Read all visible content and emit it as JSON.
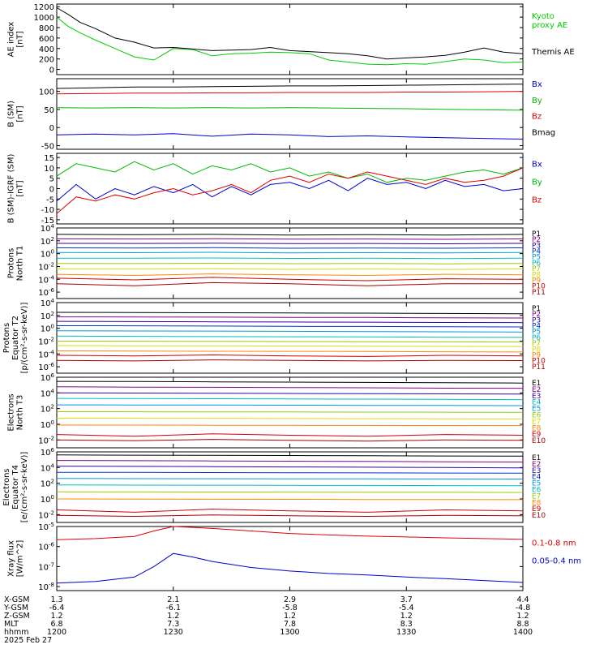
{
  "figure": {
    "x_tick_labels": [
      "1200",
      "1230",
      "1300",
      "1330",
      "1400"
    ],
    "date_label": "2025 Feb 27",
    "orbit_rows": [
      {
        "label": "X-GSM",
        "values": [
          "1.3",
          "2.1",
          "2.9",
          "3.7",
          "4.4"
        ]
      },
      {
        "label": "Y-GSM",
        "values": [
          "-6.4",
          "-6.1",
          "-5.8",
          "-5.4",
          "-4.8"
        ]
      },
      {
        "label": "Z-GSM",
        "values": [
          "1.2",
          "1.2",
          "1.2",
          "1.2",
          "1.2"
        ]
      },
      {
        "label": "MLT",
        "values": [
          "6.8",
          "7.3",
          "7.8",
          "8.3",
          "8.8"
        ]
      },
      {
        "label": "hhmm",
        "values": [
          "1200",
          "1230",
          "1300",
          "1330",
          "1400"
        ]
      }
    ]
  },
  "chart_data": [
    {
      "type": "line",
      "ylabel": [
        "AE index",
        "[nT]"
      ],
      "yticks": [
        "1200",
        "1000",
        "800",
        "600",
        "400",
        "200",
        "0"
      ],
      "ylim": [
        -100,
        1250
      ],
      "x": [
        1200,
        1203,
        1206,
        1210,
        1215,
        1220,
        1225,
        1230,
        1235,
        1240,
        1245,
        1250,
        1255,
        1300,
        1305,
        1310,
        1315,
        1320,
        1325,
        1330,
        1335,
        1340,
        1345,
        1350,
        1355,
        1400
      ],
      "series": [
        {
          "name": "Kyoto proxy AE",
          "color": "#00cc00",
          "label_lines": [
            "Kyoto",
            "proxy AE"
          ],
          "values": [
            1000,
            820,
            700,
            560,
            400,
            240,
            180,
            400,
            380,
            260,
            300,
            310,
            330,
            320,
            300,
            180,
            140,
            100,
            90,
            110,
            100,
            150,
            200,
            180,
            130,
            140
          ]
        },
        {
          "name": "Themis AE",
          "color": "#000000",
          "label_lines": [
            "Themis AE"
          ],
          "values": [
            1180,
            1050,
            900,
            780,
            600,
            520,
            410,
            420,
            390,
            360,
            370,
            380,
            420,
            360,
            340,
            320,
            300,
            260,
            200,
            220,
            240,
            270,
            330,
            410,
            330,
            300
          ]
        }
      ]
    },
    {
      "type": "line",
      "ylabel": [
        "B (SM)",
        "[nT]"
      ],
      "yticks": [
        "100",
        "50",
        "0",
        "-50"
      ],
      "ylim": [
        -60,
        135
      ],
      "x": [
        1200,
        1210,
        1220,
        1230,
        1240,
        1250,
        1300,
        1310,
        1320,
        1330,
        1340,
        1350,
        1400
      ],
      "series": [
        {
          "name": "Bx",
          "color": "#0000cc",
          "values": [
            -20,
            -18,
            -20,
            -17,
            -24,
            -18,
            -20,
            -25,
            -23,
            -26,
            -28,
            -30,
            -32
          ]
        },
        {
          "name": "By",
          "color": "#00bb00",
          "values": [
            55,
            54,
            55,
            54,
            55,
            54,
            55,
            54,
            53,
            52,
            50,
            49,
            48
          ]
        },
        {
          "name": "Bz",
          "color": "#dd0000",
          "values": [
            93,
            94,
            95,
            95,
            96,
            96,
            97,
            97,
            97,
            98,
            98,
            99,
            100
          ]
        },
        {
          "name": "Bmag",
          "color": "#000000",
          "values": [
            108,
            110,
            112,
            112,
            113,
            114,
            115,
            115,
            116,
            117,
            118,
            119,
            120
          ]
        }
      ]
    },
    {
      "type": "line",
      "ylabel": [
        "B (SM)-IGRF (SM)",
        "[nT]"
      ],
      "yticks": [
        "15",
        "10",
        "5",
        "0",
        "-5",
        "-10",
        "-15"
      ],
      "ylim": [
        -17,
        17
      ],
      "x": [
        1200,
        1205,
        1210,
        1215,
        1220,
        1225,
        1230,
        1235,
        1240,
        1245,
        1250,
        1255,
        1300,
        1305,
        1310,
        1315,
        1320,
        1325,
        1330,
        1335,
        1340,
        1345,
        1350,
        1355,
        1400
      ],
      "series": [
        {
          "name": "Bx",
          "color": "#0000cc",
          "values": [
            -6,
            2,
            -5,
            0,
            -3,
            1,
            -2,
            2,
            -4,
            1,
            -3,
            2,
            3,
            0,
            4,
            -1,
            5,
            2,
            3,
            0,
            4,
            1,
            2,
            -1,
            0
          ]
        },
        {
          "name": "By",
          "color": "#00bb00",
          "values": [
            6,
            12,
            10,
            8,
            13,
            9,
            12,
            7,
            11,
            9,
            12,
            8,
            10,
            6,
            8,
            5,
            7,
            3,
            5,
            4,
            6,
            8,
            9,
            7,
            10
          ]
        },
        {
          "name": "Bz",
          "color": "#dd0000",
          "values": [
            -12,
            -4,
            -6,
            -3,
            -5,
            -2,
            0,
            -3,
            -1,
            2,
            -2,
            4,
            6,
            3,
            7,
            5,
            8,
            6,
            4,
            2,
            5,
            3,
            4,
            6,
            10
          ]
        }
      ]
    },
    {
      "type": "line",
      "log_scale": true,
      "ylabel": [
        "Protons",
        "North T1"
      ],
      "yticks": [
        "10^4",
        "10^2",
        "10^0",
        "10^-2",
        "10^-4",
        "10^-6"
      ],
      "ylim_log10": [
        -7,
        4
      ],
      "x": [
        1200,
        1220,
        1240,
        1300,
        1320,
        1340,
        1400
      ],
      "series": [
        {
          "name": "P1",
          "color": "#000000",
          "values": [
            1000,
            900,
            1000,
            800,
            900,
            800,
            1000
          ]
        },
        {
          "name": "P2",
          "color": "#880088",
          "values": [
            200,
            190,
            210,
            180,
            190,
            170,
            200
          ]
        },
        {
          "name": "P3",
          "color": "#3300aa",
          "values": [
            40,
            38,
            42,
            36,
            38,
            34,
            40
          ]
        },
        {
          "name": "P4",
          "color": "#0033cc",
          "values": [
            8,
            7.5,
            8.5,
            7,
            7.5,
            7,
            8
          ]
        },
        {
          "name": "P5",
          "color": "#0099dd",
          "values": [
            1.5,
            1.4,
            1.6,
            1.3,
            1.4,
            1.3,
            1.5
          ]
        },
        {
          "name": "P6",
          "color": "#00bbbb",
          "values": [
            0.2,
            0.19,
            0.21,
            0.18,
            0.19,
            0.17,
            0.2
          ]
        },
        {
          "name": "P7",
          "color": "#99cc00",
          "values": [
            0.03,
            0.028,
            0.032,
            0.027,
            0.029,
            0.026,
            0.03
          ]
        },
        {
          "name": "P8",
          "color": "#dddd00",
          "values": [
            0.004,
            0.0038,
            0.0042,
            0.0036,
            0.0039,
            0.0035,
            0.004
          ]
        },
        {
          "name": "P9",
          "color": "#ff8800",
          "values": [
            0.0006,
            0.0004,
            0.0007,
            0.0005,
            0.0004,
            0.0006,
            0.0005
          ]
        },
        {
          "name": "P10",
          "color": "#cc0000",
          "values": [
            0.00015,
            8e-05,
            0.0002,
            0.0001,
            6e-05,
            0.00012,
            0.0001
          ]
        },
        {
          "name": "P11",
          "color": "#aa0000",
          "values": [
            2e-05,
            1e-05,
            3e-05,
            2e-05,
            1e-05,
            2e-05,
            2e-05
          ]
        }
      ]
    },
    {
      "type": "line",
      "log_scale": true,
      "ylabel": [
        "Protons",
        "Equator T2",
        "[p/(cm²-s-sr-keV)]"
      ],
      "yticks": [
        "10^4",
        "10^2",
        "10^0",
        "10^-2",
        "10^-4",
        "10^-6"
      ],
      "ylim_log10": [
        -7,
        4
      ],
      "x": [
        1200,
        1220,
        1240,
        1300,
        1320,
        1340,
        1400
      ],
      "series": [
        {
          "name": "P1",
          "color": "#000000",
          "values": [
            300,
            280,
            260,
            240,
            230,
            200,
            180
          ]
        },
        {
          "name": "P2",
          "color": "#880088",
          "values": [
            60,
            58,
            55,
            50,
            48,
            42,
            40
          ]
        },
        {
          "name": "P3",
          "color": "#3300aa",
          "values": [
            12,
            11,
            10,
            9.5,
            9,
            8,
            7.5
          ]
        },
        {
          "name": "P4",
          "color": "#0033cc",
          "values": [
            2.5,
            2.4,
            2.2,
            2,
            1.9,
            1.7,
            1.6
          ]
        },
        {
          "name": "P5",
          "color": "#0099dd",
          "values": [
            0.4,
            0.38,
            0.36,
            0.33,
            0.31,
            0.28,
            0.26
          ]
        },
        {
          "name": "P6",
          "color": "#00bbbb",
          "values": [
            0.06,
            0.055,
            0.05,
            0.048,
            0.045,
            0.04,
            0.038
          ]
        },
        {
          "name": "P7",
          "color": "#99cc00",
          "values": [
            0.01,
            0.0095,
            0.009,
            0.0085,
            0.008,
            0.0075,
            0.007
          ]
        },
        {
          "name": "P8",
          "color": "#dddd00",
          "values": [
            0.002,
            0.0019,
            0.0018,
            0.0017,
            0.0016,
            0.0015,
            0.0014
          ]
        },
        {
          "name": "P9",
          "color": "#ff8800",
          "values": [
            0.0003,
            0.00028,
            0.00026,
            0.00025,
            0.00024,
            0.00022,
            0.0002
          ]
        },
        {
          "name": "P10",
          "color": "#cc0000",
          "values": [
            6e-05,
            5e-05,
            7e-05,
            5e-05,
            4e-05,
            6e-05,
            5e-05
          ]
        },
        {
          "name": "P11",
          "color": "#aa0000",
          "values": [
            1e-05,
            8e-06,
            1.2e-05,
            1e-05,
            8e-06,
            1e-05,
            9e-06
          ]
        }
      ]
    },
    {
      "type": "line",
      "log_scale": true,
      "ylabel": [
        "Electrons",
        "North T3"
      ],
      "yticks": [
        "10^6",
        "10^4",
        "10^2",
        "10^0",
        "10^-2"
      ],
      "ylim_log10": [
        -3,
        6
      ],
      "x": [
        1200,
        1220,
        1240,
        1300,
        1320,
        1340,
        1400
      ],
      "series": [
        {
          "name": "E1",
          "color": "#000000",
          "values": [
            300000,
            280000,
            260000,
            240000,
            220000,
            200000,
            180000
          ]
        },
        {
          "name": "E2",
          "color": "#880088",
          "values": [
            60000,
            55000,
            52000,
            48000,
            45000,
            40000,
            38000
          ]
        },
        {
          "name": "E3",
          "color": "#3300aa",
          "values": [
            10000,
            9500,
            9000,
            8500,
            8000,
            7500,
            7000
          ]
        },
        {
          "name": "E4",
          "color": "#00bbbb",
          "values": [
            2000,
            1900,
            1800,
            1700,
            1600,
            1500,
            1400
          ]
        },
        {
          "name": "E5",
          "color": "#0099dd",
          "values": [
            300,
            290,
            280,
            270,
            260,
            250,
            240
          ]
        },
        {
          "name": "E6",
          "color": "#99cc00",
          "values": [
            40,
            39,
            38,
            37,
            36,
            35,
            34
          ]
        },
        {
          "name": "E7",
          "color": "#dddd00",
          "values": [
            6,
            5.8,
            5.6,
            5.4,
            5.2,
            5,
            4.8
          ]
        },
        {
          "name": "E8",
          "color": "#ff8800",
          "values": [
            0.8,
            0.78,
            0.76,
            0.74,
            0.72,
            0.7,
            0.68
          ]
        },
        {
          "name": "E9",
          "color": "#cc0000",
          "values": [
            0.05,
            0.03,
            0.06,
            0.04,
            0.03,
            0.05,
            0.04
          ]
        },
        {
          "name": "E10",
          "color": "#aa0000",
          "values": [
            0.01,
            0.008,
            0.012,
            0.009,
            0.007,
            0.01,
            0.009
          ]
        }
      ]
    },
    {
      "type": "line",
      "log_scale": true,
      "ylabel": [
        "Electrons",
        "Equator T4",
        "[e/(cm²-s-sr-keV)]"
      ],
      "yticks": [
        "10^6",
        "10^4",
        "10^2",
        "10^0",
        "10^-2"
      ],
      "ylim_log10": [
        -3,
        6
      ],
      "x": [
        1200,
        1220,
        1240,
        1300,
        1320,
        1340,
        1400
      ],
      "series": [
        {
          "name": "E1",
          "color": "#000000",
          "values": [
            400000,
            380000,
            360000,
            340000,
            320000,
            300000,
            280000
          ]
        },
        {
          "name": "E2",
          "color": "#880088",
          "values": [
            80000,
            75000,
            70000,
            65000,
            60000,
            55000,
            50000
          ]
        },
        {
          "name": "E3",
          "color": "#3300aa",
          "values": [
            15000,
            14000,
            13000,
            12000,
            11000,
            10000,
            9000
          ]
        },
        {
          "name": "E4",
          "color": "#0033cc",
          "values": [
            2500,
            2400,
            2300,
            2200,
            2100,
            2000,
            1900
          ]
        },
        {
          "name": "E5",
          "color": "#0099dd",
          "values": [
            400,
            390,
            380,
            370,
            360,
            350,
            340
          ]
        },
        {
          "name": "E6",
          "color": "#00bbbb",
          "values": [
            60,
            58,
            56,
            54,
            52,
            50,
            48
          ]
        },
        {
          "name": "E7",
          "color": "#99cc00",
          "values": [
            8,
            7.8,
            7.6,
            7.4,
            7.2,
            7,
            6.8
          ]
        },
        {
          "name": "E8",
          "color": "#ff8800",
          "values": [
            1,
            0.95,
            0.9,
            0.88,
            0.85,
            0.82,
            0.8
          ]
        },
        {
          "name": "E9",
          "color": "#cc0000",
          "values": [
            0.04,
            0.02,
            0.05,
            0.03,
            0.02,
            0.04,
            0.03
          ]
        },
        {
          "name": "E10",
          "color": "#aa0000",
          "values": [
            0.008,
            0.006,
            0.009,
            0.007,
            0.006,
            0.008,
            0.007
          ]
        }
      ]
    },
    {
      "type": "line",
      "log_scale": true,
      "ylabel": [
        "Xray flux",
        "[W/m^2]"
      ],
      "yticks": [
        "10^-5",
        "10^-6",
        "10^-7",
        "10^-8"
      ],
      "ylim_log10": [
        -8.2,
        -5
      ],
      "x": [
        1200,
        1210,
        1220,
        1225,
        1230,
        1235,
        1240,
        1250,
        1300,
        1310,
        1320,
        1330,
        1340,
        1350,
        1400
      ],
      "series": [
        {
          "name": "0.1-0.8 nm",
          "color": "#dd0000",
          "values": [
            2.2e-06,
            2.5e-06,
            3.2e-06,
            6e-06,
            1e-05,
            9e-06,
            8e-06,
            6e-06,
            4.5e-06,
            3.8e-06,
            3.3e-06,
            3e-06,
            2.7e-06,
            2.5e-06,
            2.3e-06
          ]
        },
        {
          "name": "0.05-0.4 nm",
          "color": "#0000cc",
          "values": [
            1.5e-08,
            1.8e-08,
            3e-08,
            1e-07,
            4.5e-07,
            3e-07,
            1.8e-07,
            9e-08,
            6e-08,
            4.5e-08,
            3.8e-08,
            3e-08,
            2.5e-08,
            2e-08,
            1.6e-08
          ]
        }
      ]
    }
  ]
}
